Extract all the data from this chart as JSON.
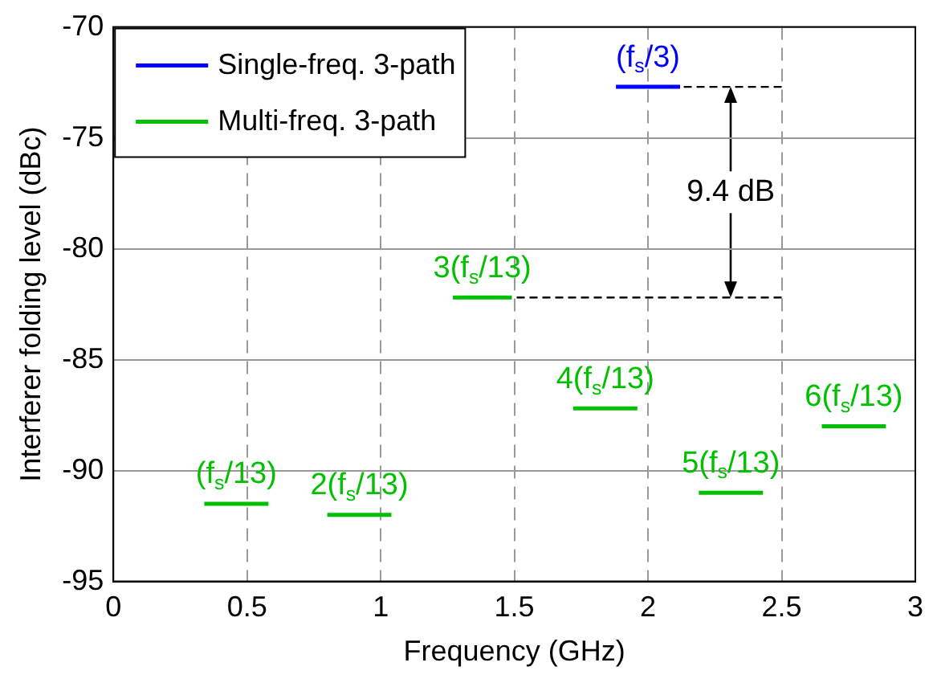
{
  "chart_data": {
    "type": "line",
    "xlabel": "Frequency (GHz)",
    "ylabel": "Interferer folding level (dBc)",
    "xlim": [
      0,
      3
    ],
    "xticks": [
      0,
      0.5,
      1,
      1.5,
      2,
      2.5,
      3
    ],
    "ylim": [
      -95,
      -70
    ],
    "yticks": [
      -95,
      -90,
      -85,
      -80,
      -75,
      -70
    ],
    "grid": true,
    "legend": "top left",
    "marker": "none",
    "series": [
      {
        "name": "Single-freq. 3-path",
        "color": "#0000ff",
        "x": [
          1.88,
          2.12
        ],
        "values": [
          -72.7,
          -72.7
        ]
      },
      {
        "name": "Multi-freq. 3-path",
        "color": "#00c000",
        "x": [
          0.34,
          0.58
        ],
        "values": [
          -91.5,
          -91.5
        ]
      },
      {
        "color": "#00c000",
        "x": [
          0.8,
          1.04
        ],
        "values": [
          -92.0,
          -92.0
        ]
      },
      {
        "color": "#00c000",
        "x": [
          1.27,
          1.49
        ],
        "values": [
          -82.2,
          -82.2
        ]
      },
      {
        "color": "#00c000",
        "x": [
          1.72,
          1.96
        ],
        "values": [
          -87.2,
          -87.2
        ]
      },
      {
        "color": "#00c000",
        "x": [
          2.19,
          2.43
        ],
        "values": [
          -91.0,
          -91.0
        ]
      },
      {
        "color": "#00c000",
        "x": [
          2.65,
          2.89
        ],
        "values": [
          -88.0,
          -88.0
        ]
      },
      {
        "color": "#000000",
        "line_style": "dashed",
        "x": [
          2.5,
          2.12
        ],
        "values": [
          -72.7,
          -72.7
        ]
      },
      {
        "color": "#000000",
        "line_style": "dashed",
        "x": [
          2.5,
          1.49
        ],
        "values": [
          -82.2,
          -82.2
        ]
      }
    ],
    "annotations": [
      {
        "text": "(f$_{s}$/3)",
        "x": 2.0,
        "y": -72.7
      },
      {
        "text": "3(f$_{s}$/13)",
        "x": 1.38,
        "y": -82.2
      },
      {
        "text": "(f$_{s}$/13)",
        "x": 0.46,
        "y": -91.5
      },
      {
        "text": "2(f$_{s}$/13)",
        "x": 0.92,
        "y": -92.0
      },
      {
        "text": "4(f$_{s}$/13)",
        "x": 1.84,
        "y": -87.2
      },
      {
        "text": "5(f$_{s}$/13)",
        "x": 2.31,
        "y": -91.0
      },
      {
        "text": "6(f$_{s}$/13)",
        "x": 2.77,
        "y": -88.0
      },
      "9.4 dB"
    ]
  }
}
